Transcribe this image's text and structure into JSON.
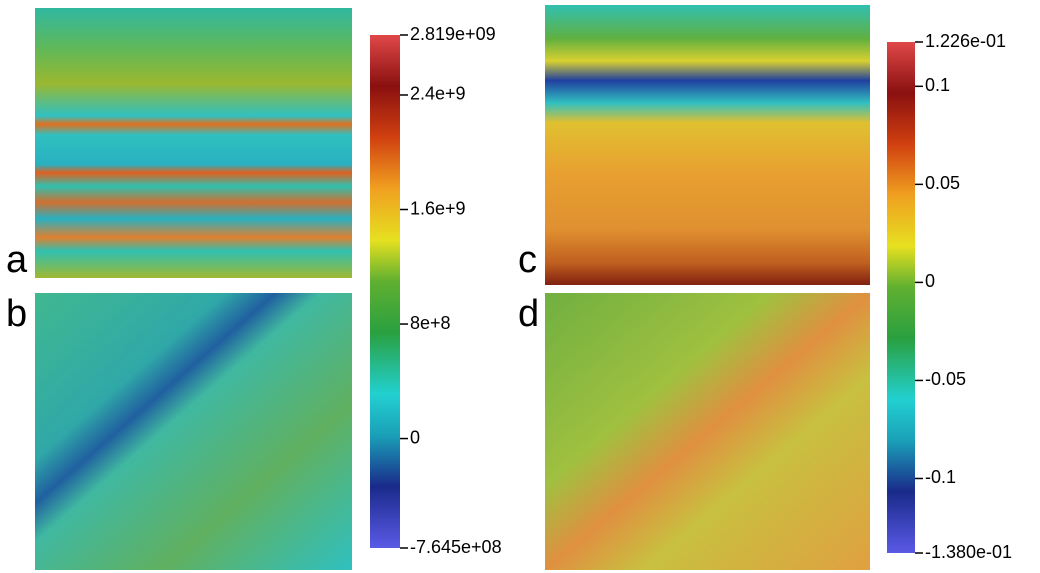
{
  "panels": [
    {
      "label": "a"
    },
    {
      "label": "b"
    },
    {
      "label": "c"
    },
    {
      "label": "d"
    }
  ],
  "colorbars": [
    {
      "min": {
        "value": -764500000,
        "label": "-7.645e+08"
      },
      "max": {
        "value": 2819000000,
        "label": "2.819e+09"
      },
      "ticks": [
        {
          "value": 2400000000,
          "label": "2.4e+9"
        },
        {
          "value": 1600000000,
          "label": "1.6e+9"
        },
        {
          "value": 800000000,
          "label": "8e+8"
        },
        0
      ]
    },
    {
      "min": {
        "value": -0.138,
        "label": "-1.380e-01"
      },
      "max": {
        "value": 0.1226,
        "label": "1.226e-01"
      },
      "ticks": [
        0.1,
        0.05,
        0,
        -0.05,
        -0.1
      ]
    }
  ]
}
